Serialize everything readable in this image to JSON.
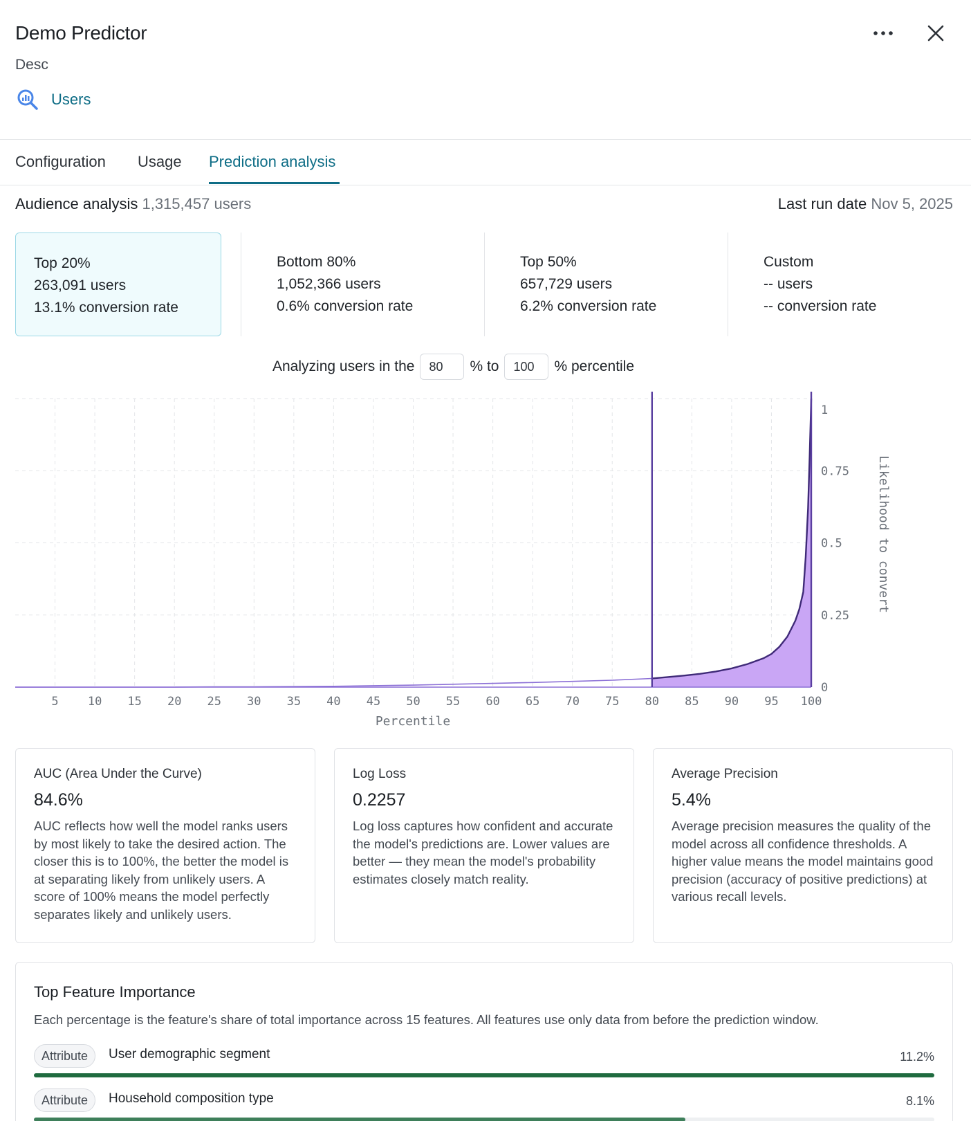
{
  "header": {
    "title": "Demo Predictor",
    "description": "Desc",
    "source_label": "Users",
    "source_icon": "search-analytics-icon",
    "more_icon": "more-horizontal-icon",
    "close_icon": "close-icon"
  },
  "tabs": [
    {
      "label": "Configuration",
      "active": false
    },
    {
      "label": "Usage",
      "active": false
    },
    {
      "label": "Prediction analysis",
      "active": true
    }
  ],
  "audience": {
    "label": "Audience analysis",
    "count": "1,315,457 users",
    "last_run_label": "Last run date",
    "last_run_value": "Nov 5, 2025"
  },
  "segments": [
    {
      "name": "Top 20%",
      "users": "263,091 users",
      "rate": "13.1% conversion rate",
      "selected": true
    },
    {
      "name": "Bottom 80%",
      "users": "1,052,366 users",
      "rate": "0.6% conversion rate",
      "selected": false
    },
    {
      "name": "Top 50%",
      "users": "657,729 users",
      "rate": "6.2% conversion rate",
      "selected": false
    },
    {
      "name": "Custom",
      "users": "-- users",
      "rate": "-- conversion rate",
      "selected": false
    }
  ],
  "range": {
    "prefix": "Analyzing users in the",
    "from": "80",
    "middle": "% to",
    "to": "100",
    "suffix": "% percentile"
  },
  "chart_data": {
    "type": "area",
    "xlabel": "Percentile",
    "ylabel": "Likelihood to convert",
    "xlim": [
      0,
      100
    ],
    "ylim": [
      0,
      1
    ],
    "x_ticks": [
      5,
      10,
      15,
      20,
      25,
      30,
      35,
      40,
      45,
      50,
      55,
      60,
      65,
      70,
      75,
      80,
      85,
      90,
      95,
      100
    ],
    "y_ticks": [
      0,
      0.25,
      0.5,
      0.75,
      1
    ],
    "y_tick_labels": [
      "0",
      "0.25",
      "0.5",
      "0.75",
      "1"
    ],
    "grid": true,
    "highlight_range": [
      80,
      100
    ],
    "x": [
      0,
      5,
      10,
      15,
      20,
      25,
      30,
      35,
      40,
      45,
      50,
      55,
      60,
      65,
      70,
      75,
      80,
      82,
      84,
      86,
      88,
      90,
      92,
      94,
      95,
      96,
      97,
      98,
      98.5,
      99,
      99.3,
      99.6,
      99.8,
      100
    ],
    "y": [
      0,
      0,
      0,
      0,
      0,
      0.001,
      0.001,
      0.002,
      0.003,
      0.005,
      0.007,
      0.01,
      0.013,
      0.016,
      0.02,
      0.024,
      0.03,
      0.035,
      0.04,
      0.046,
      0.054,
      0.065,
      0.08,
      0.1,
      0.115,
      0.14,
      0.175,
      0.23,
      0.27,
      0.33,
      0.45,
      0.62,
      0.8,
      1.0
    ],
    "colors": {
      "line": "#3f2a78",
      "fill": "#c9a6f5",
      "marker": "#5a3fa0",
      "grid": "#e3e5e8"
    }
  },
  "metrics": [
    {
      "title": "AUC (Area Under the Curve)",
      "value": "84.6%",
      "description": "AUC reflects how well the model ranks users by most likely to take the desired action. The closer this is to 100%, the better the model is at separating likely from unlikely users. A score of 100% means the model perfectly separates likely and unlikely users."
    },
    {
      "title": "Log Loss",
      "value": "0.2257",
      "description": "Log loss captures how confident and accurate the model's predictions are. Lower values are better — they mean the model's probability estimates closely match reality."
    },
    {
      "title": "Average Precision",
      "value": "5.4%",
      "description": "Average precision measures the quality of the model across all confidence thresholds. A higher value means the model maintains good precision (accuracy of positive predictions) at various recall levels."
    }
  ],
  "features": {
    "title": "Top Feature Importance",
    "description": "Each percentage is the feature's share of total importance across 15 features. All features use only data from before the prediction window.",
    "items": [
      {
        "type": "Attribute",
        "name": "User demographic segment",
        "pct_label": "11.2%",
        "value": 11.2
      },
      {
        "type": "Attribute",
        "name": "Household composition type",
        "pct_label": "8.1%",
        "value": 8.1
      }
    ],
    "bar_color": "#1f6b3f"
  }
}
